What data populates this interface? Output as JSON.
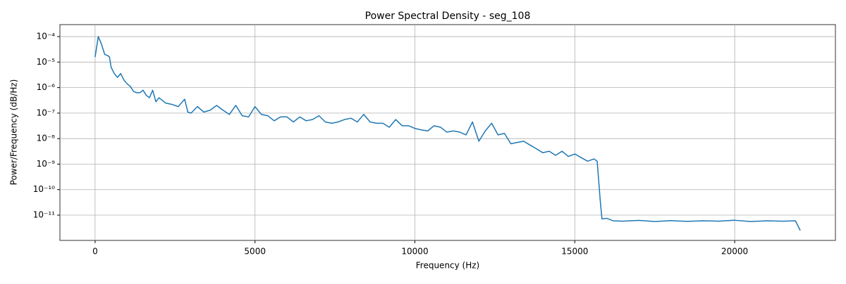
{
  "chart_data": {
    "type": "line",
    "title": "Power Spectral Density - seg_108",
    "x_label": "Frequency (Hz)",
    "y_label": "Power/Frequency (dB/Hz)",
    "log_y": true,
    "grid": true,
    "xlim": [
      -1100,
      23150
    ],
    "xticks": [
      0,
      5000,
      10000,
      15000,
      20000
    ],
    "ylim": [
      1.02e-12,
      0.000295
    ],
    "yticks": [
      {
        "value": 1e-11,
        "label": "10⁻¹¹"
      },
      {
        "value": 1e-10,
        "label": "10⁻¹⁰"
      },
      {
        "value": 1e-09,
        "label": "10⁻⁹"
      },
      {
        "value": 1e-08,
        "label": "10⁻⁸"
      },
      {
        "value": 1e-07,
        "label": "10⁻⁷"
      },
      {
        "value": 1e-06,
        "label": "10⁻⁶"
      },
      {
        "value": 1e-05,
        "label": "10⁻⁵"
      },
      {
        "value": 0.0001,
        "label": "10⁻⁴"
      }
    ],
    "series": [
      {
        "color": "#1f77b4",
        "x": [
          0,
          100,
          200,
          300,
          400,
          450,
          500,
          600,
          700,
          800,
          900,
          1000,
          1100,
          1200,
          1300,
          1400,
          1500,
          1600,
          1700,
          1800,
          1900,
          2000,
          2200,
          2400,
          2600,
          2800,
          2900,
          3000,
          3200,
          3400,
          3600,
          3800,
          4000,
          4200,
          4400,
          4600,
          4800,
          5000,
          5200,
          5400,
          5600,
          5800,
          6000,
          6200,
          6400,
          6600,
          6800,
          7000,
          7200,
          7400,
          7600,
          7800,
          8000,
          8200,
          8400,
          8600,
          8800,
          9000,
          9200,
          9400,
          9600,
          9800,
          10000,
          10200,
          10400,
          10600,
          10800,
          11000,
          11200,
          11400,
          11600,
          11800,
          12000,
          12200,
          12400,
          12600,
          12800,
          13000,
          13200,
          13400,
          13600,
          13800,
          14000,
          14200,
          14400,
          14600,
          14800,
          15000,
          15200,
          15400,
          15600,
          15700,
          15800,
          15850,
          16000,
          16200,
          16500,
          17000,
          17500,
          18000,
          18500,
          19000,
          19500,
          20000,
          20500,
          21000,
          21500,
          21900,
          22050
        ],
        "values": [
          1.58e-05,
          0.0001,
          5.01e-05,
          2e-05,
          1.78e-05,
          1.58e-05,
          6.3e-06,
          3.55e-06,
          2.51e-06,
          3.55e-06,
          2e-06,
          1.41e-06,
          1.12e-06,
          7.1e-07,
          6.3e-07,
          6.3e-07,
          7.9e-07,
          5e-07,
          4e-07,
          7.9e-07,
          2.8e-07,
          4e-07,
          2.5e-07,
          2.2e-07,
          1.8e-07,
          3.5e-07,
          1.1e-07,
          1e-07,
          1.8e-07,
          1.1e-07,
          1.3e-07,
          2e-07,
          1.3e-07,
          8.9e-08,
          2e-07,
          7.9e-08,
          7.1e-08,
          1.8e-07,
          8.9e-08,
          7.9e-08,
          5e-08,
          7.1e-08,
          7.1e-08,
          4.5e-08,
          7.1e-08,
          5e-08,
          5.6e-08,
          7.9e-08,
          4.5e-08,
          4e-08,
          4.5e-08,
          5.6e-08,
          6.3e-08,
          4.5e-08,
          8.9e-08,
          4.5e-08,
          4e-08,
          4e-08,
          2.8e-08,
          5.6e-08,
          3.2e-08,
          3.2e-08,
          2.5e-08,
          2.2e-08,
          2e-08,
          3.2e-08,
          2.8e-08,
          1.8e-08,
          2e-08,
          1.8e-08,
          1.4e-08,
          4.5e-08,
          7.9e-09,
          2e-08,
          4e-08,
          1.4e-08,
          1.6e-08,
          6.3e-09,
          7.1e-09,
          7.9e-09,
          5.6e-09,
          4e-09,
          2.8e-09,
          3.2e-09,
          2.2e-09,
          3.2e-09,
          2e-09,
          2.5e-09,
          1.8e-09,
          1.3e-09,
          1.6e-09,
          1.3e-09,
          3.2e-11,
          7.1e-12,
          7.5e-12,
          6e-12,
          5.8e-12,
          6.2e-12,
          5.6e-12,
          6.1e-12,
          5.7e-12,
          6e-12,
          5.8e-12,
          6.3e-12,
          5.6e-12,
          6e-12,
          5.8e-12,
          6e-12,
          2.5e-12
        ]
      }
    ]
  }
}
